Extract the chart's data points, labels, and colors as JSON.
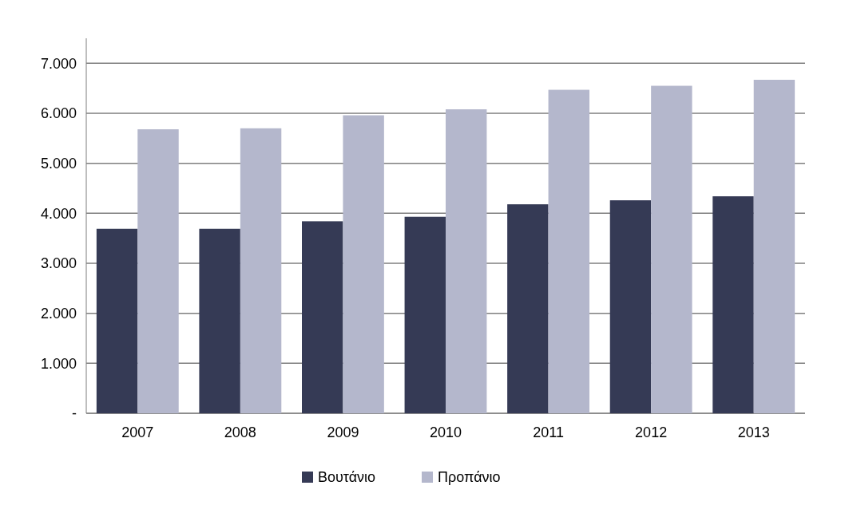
{
  "chart_data": {
    "type": "bar",
    "categories": [
      "2007",
      "2008",
      "2009",
      "2010",
      "2011",
      "2012",
      "2013"
    ],
    "series": [
      {
        "name": "Βουτάνιο",
        "color": "#353a55",
        "values": [
          3690,
          3690,
          3840,
          3930,
          4180,
          4260,
          4340
        ]
      },
      {
        "name": "Προπάνιο",
        "color": "#b4b7cc",
        "values": [
          5680,
          5700,
          5960,
          6080,
          6470,
          6550,
          6670
        ]
      }
    ],
    "ylim": [
      0,
      7500
    ],
    "yticks": [
      {
        "value": 0,
        "label": "-"
      },
      {
        "value": 1000,
        "label": "1.000"
      },
      {
        "value": 2000,
        "label": "2.000"
      },
      {
        "value": 3000,
        "label": "3.000"
      },
      {
        "value": 4000,
        "label": "4.000"
      },
      {
        "value": 5000,
        "label": "5.000"
      },
      {
        "value": 6000,
        "label": "6.000"
      },
      {
        "value": 7000,
        "label": "7.000"
      }
    ],
    "grid": true,
    "legend": "bottom"
  }
}
